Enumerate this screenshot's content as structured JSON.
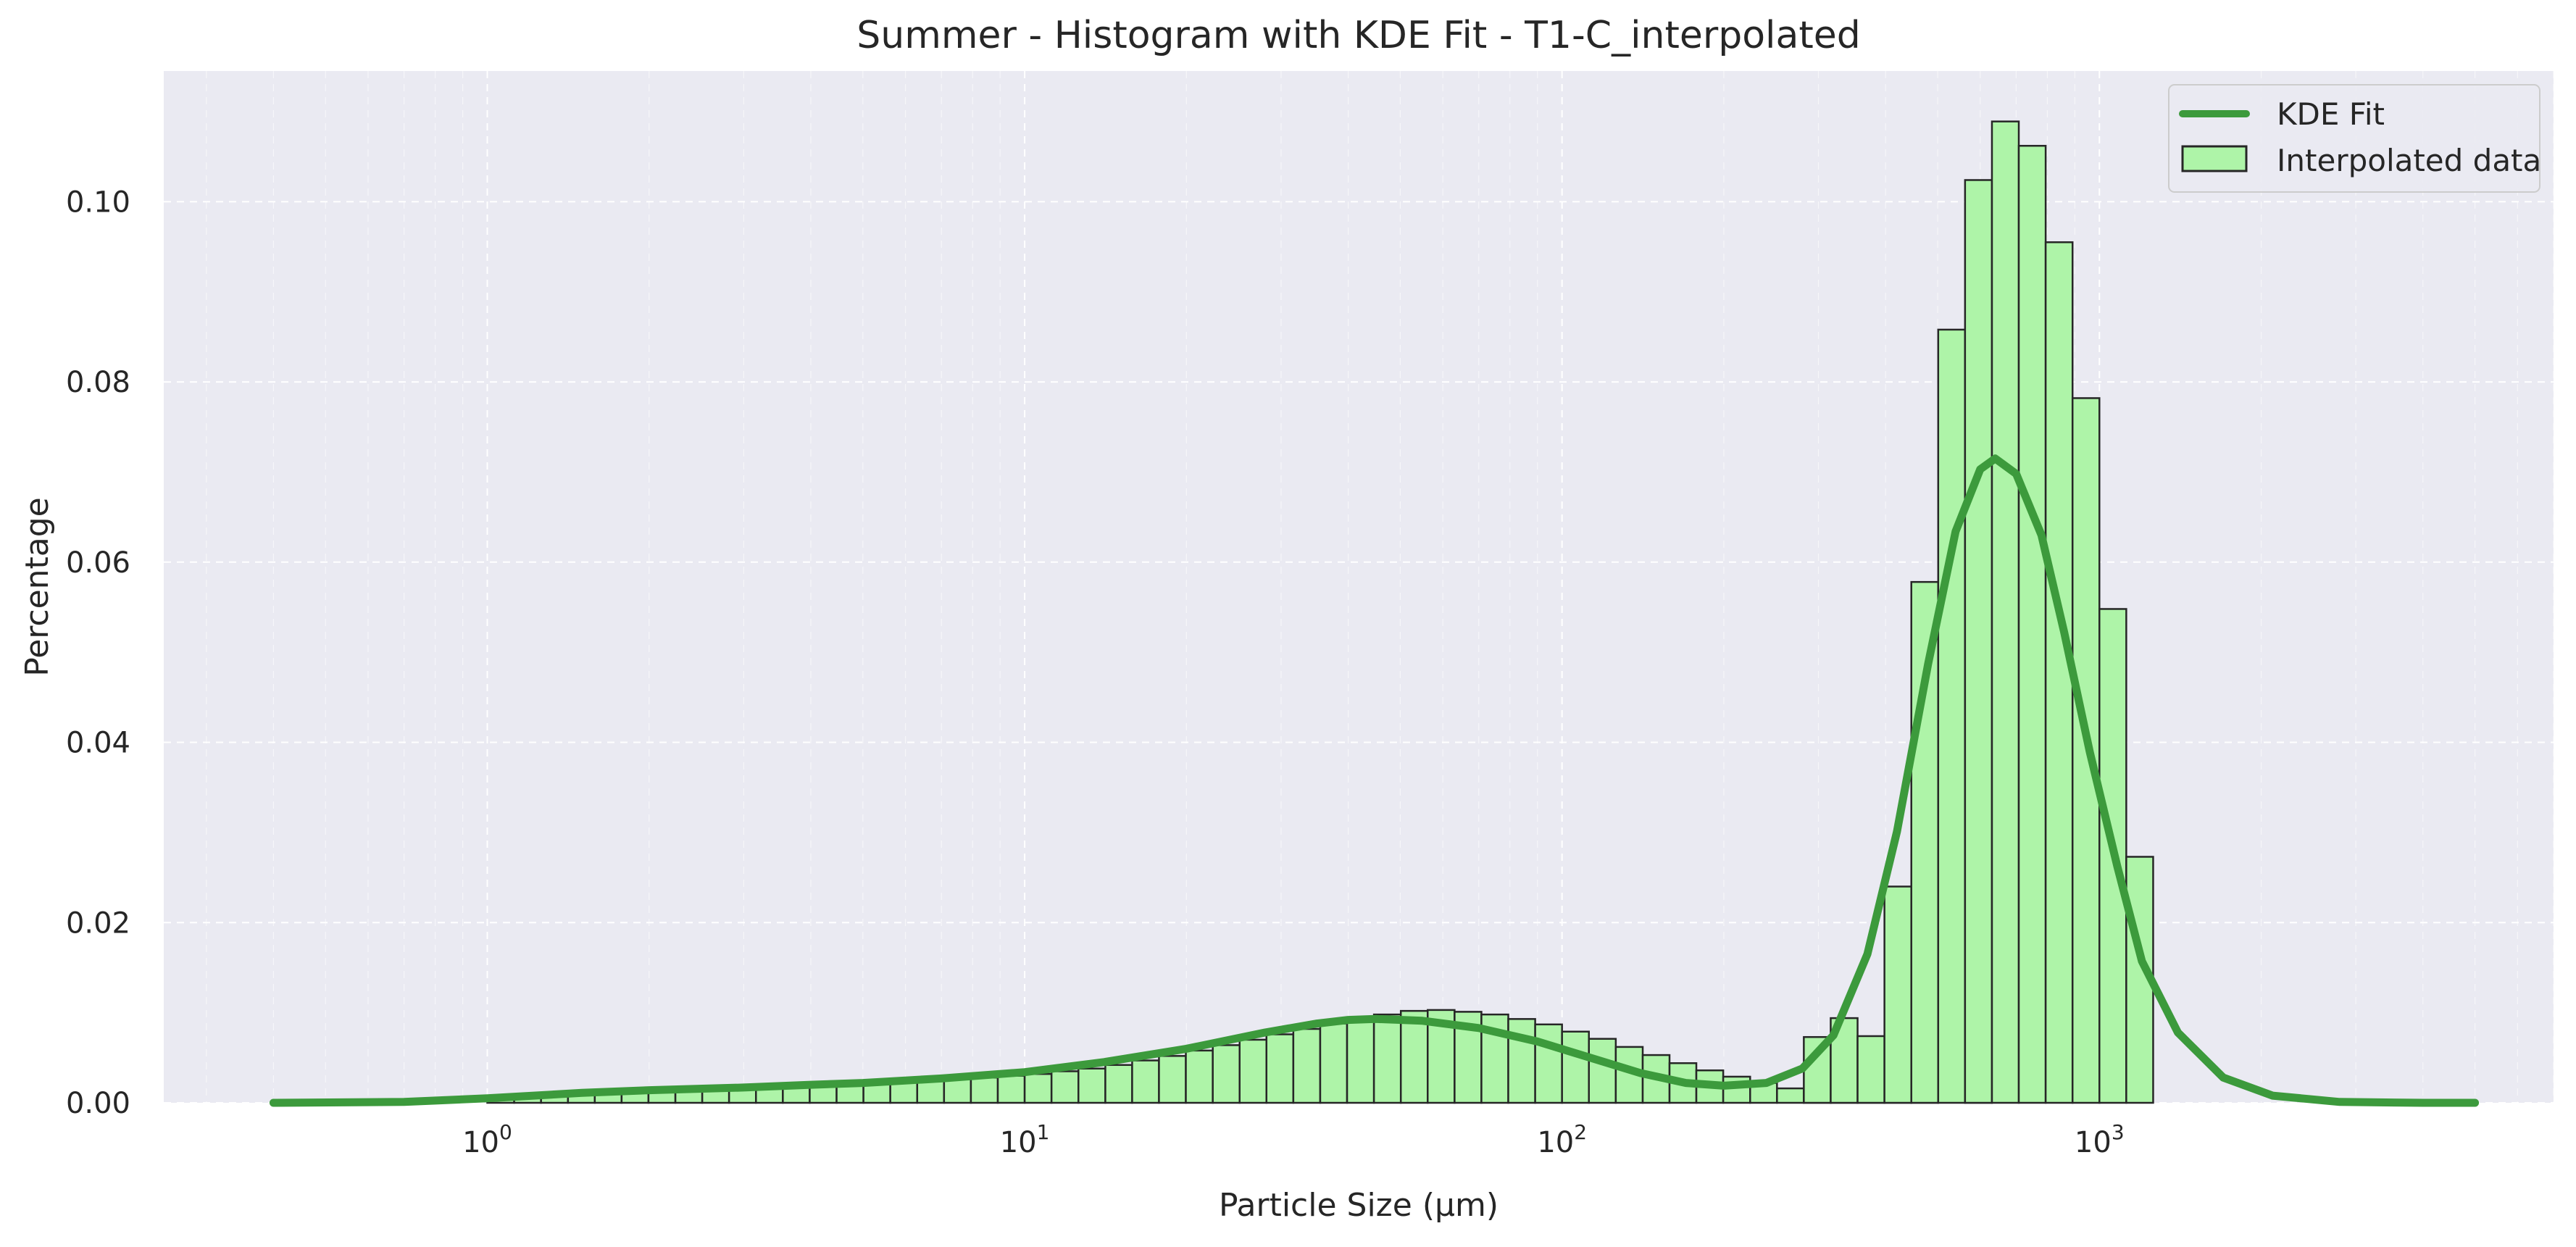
{
  "chart_data": {
    "type": "bar",
    "title": "Summer - Histogram with KDE Fit - T1-C_interpolated",
    "xlabel": "Particle Size (μm)",
    "ylabel": "Percentage",
    "x_scale": "log",
    "xlim": [
      0.25,
      7000
    ],
    "ylim": [
      0,
      0.1145
    ],
    "y_ticks": [
      0.0,
      0.02,
      0.04,
      0.06,
      0.08,
      0.1
    ],
    "y_tick_labels": [
      "0.00",
      "0.02",
      "0.04",
      "0.06",
      "0.08",
      "0.10"
    ],
    "x_ticks": [
      1,
      10,
      100,
      1000
    ],
    "x_tick_labels": [
      {
        "base": "10",
        "exp": "0"
      },
      {
        "base": "10",
        "exp": "1"
      },
      {
        "base": "10",
        "exp": "2"
      },
      {
        "base": "10",
        "exp": "3"
      }
    ],
    "grid": true,
    "legend_position": "top-right",
    "colors": {
      "plot_background": "#eaeaf2",
      "bar_fill": "#aef4a8",
      "bar_edge": "#262626",
      "kde_line": "#3c9a3c",
      "grid": "#ffffff"
    },
    "legend": [
      {
        "label": "KDE Fit",
        "kind": "line"
      },
      {
        "label": "Interpolated data",
        "kind": "patch"
      }
    ],
    "histogram": {
      "name": "Interpolated data",
      "bin_edges": [
        1.0,
        1.122,
        1.259,
        1.413,
        1.585,
        1.778,
        1.995,
        2.239,
        2.512,
        2.818,
        3.162,
        3.548,
        3.981,
        4.467,
        5.012,
        5.623,
        6.31,
        7.079,
        7.943,
        8.913,
        10.0,
        11.22,
        12.59,
        14.13,
        15.85,
        17.78,
        19.95,
        22.39,
        25.12,
        28.18,
        31.62,
        35.48,
        39.81,
        44.67,
        50.12,
        56.23,
        63.1,
        70.79,
        79.43,
        89.13,
        100.0,
        112.2,
        125.9,
        141.3,
        158.5,
        177.8,
        199.5,
        223.9,
        251.2,
        281.8,
        316.2,
        354.8,
        398.1,
        446.7,
        501.2,
        562.3,
        631.0,
        707.9,
        794.3,
        891.3,
        1000.0,
        1122.0
      ],
      "values": [
        0.0006,
        0.0008,
        0.0009,
        0.001,
        0.0011,
        0.0012,
        0.0013,
        0.0014,
        0.0015,
        0.0016,
        0.0017,
        0.0018,
        0.0019,
        0.002,
        0.0022,
        0.0023,
        0.0024,
        0.0026,
        0.0028,
        0.003,
        0.0032,
        0.0035,
        0.0038,
        0.0042,
        0.0047,
        0.0052,
        0.0058,
        0.0064,
        0.007,
        0.0076,
        0.0082,
        0.0088,
        0.0093,
        0.0098,
        0.0102,
        0.0103,
        0.0101,
        0.0098,
        0.0093,
        0.0087,
        0.0079,
        0.0071,
        0.0062,
        0.0053,
        0.0044,
        0.0036,
        0.0029,
        0.0022,
        0.0016,
        0.0012,
        0.0008,
        0.0006,
        0.0004,
        0.0003,
        0.0,
        0.0001,
        0.0,
        0.0,
        0.0,
        0.0,
        0.0
      ],
      "secondary_bins": [
        {
          "x0": 281.8,
          "x1": 316.2,
          "value": 0.0073
        },
        {
          "x0": 316.2,
          "x1": 354.8,
          "value": 0.0094
        },
        {
          "x0": 354.8,
          "x1": 398.1,
          "value": 0.0074
        },
        {
          "x0": 398.1,
          "x1": 446.7,
          "value": 0.024
        },
        {
          "x0": 446.7,
          "x1": 501.2,
          "value": 0.0578
        },
        {
          "x0": 501.2,
          "x1": 562.3,
          "value": 0.0858
        },
        {
          "x0": 562.3,
          "x1": 631.0,
          "value": 0.1024
        },
        {
          "x0": 631.0,
          "x1": 707.9,
          "value": 0.1089
        },
        {
          "x0": 707.9,
          "x1": 794.3,
          "value": 0.1062
        },
        {
          "x0": 794.3,
          "x1": 891.3,
          "value": 0.0955
        },
        {
          "x0": 891.3,
          "x1": 1000.0,
          "value": 0.0782
        },
        {
          "x0": 1000.0,
          "x1": 1122.0,
          "value": 0.0548
        },
        {
          "x0": 1122.0,
          "x1": 1259.0,
          "value": 0.0273
        }
      ]
    },
    "kde": {
      "name": "KDE Fit",
      "x": [
        0.4,
        0.7,
        1.0,
        1.5,
        2.0,
        3.0,
        4.0,
        5.0,
        7.0,
        10.0,
        14.0,
        20.0,
        28.0,
        35.0,
        40.0,
        45.0,
        55.0,
        70.0,
        90.0,
        110.0,
        140.0,
        170.0,
        200.0,
        240.0,
        280.0,
        320.0,
        370.0,
        420.0,
        480.0,
        540.0,
        600.0,
        640.0,
        700.0,
        780.0,
        860.0,
        960.0,
        1080.0,
        1200.0,
        1400.0,
        1700.0,
        2100.0,
        2800.0,
        4000.0,
        5000.0
      ],
      "y": [
        0.0,
        0.0001,
        0.0005,
        0.0011,
        0.0014,
        0.0017,
        0.002,
        0.0022,
        0.0027,
        0.0034,
        0.0045,
        0.006,
        0.0078,
        0.0088,
        0.0092,
        0.0093,
        0.0091,
        0.0083,
        0.0068,
        0.0052,
        0.0033,
        0.0022,
        0.0019,
        0.0022,
        0.0038,
        0.0075,
        0.0165,
        0.0301,
        0.0487,
        0.0634,
        0.0703,
        0.0715,
        0.0698,
        0.063,
        0.0522,
        0.0389,
        0.0262,
        0.0157,
        0.0078,
        0.0028,
        0.0008,
        0.0001,
        0.0,
        0.0
      ]
    }
  }
}
